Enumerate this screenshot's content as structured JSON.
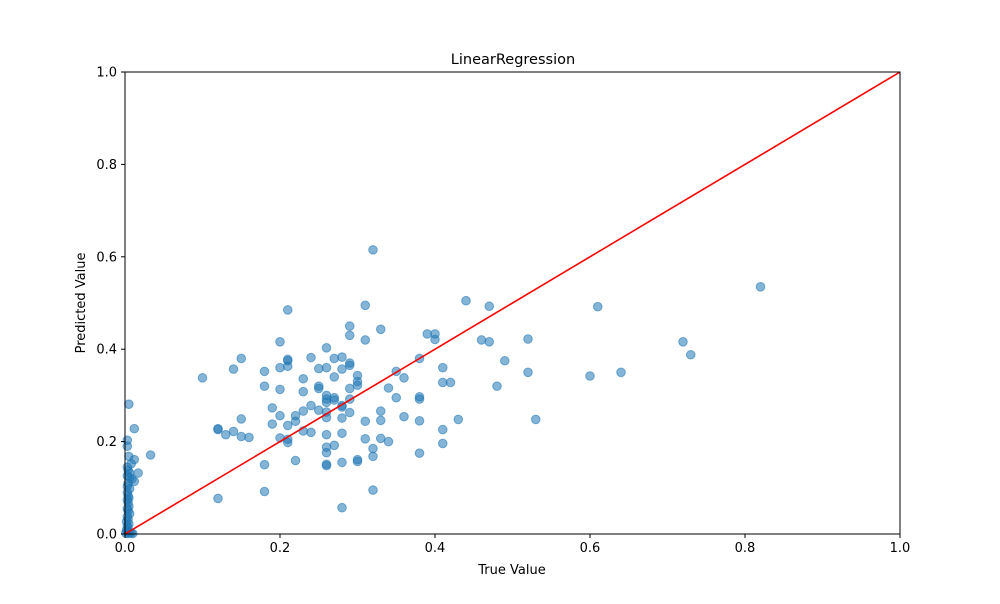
{
  "chart_data": {
    "type": "scatter",
    "title": "LinearRegression",
    "xlabel": "True Value",
    "ylabel": "Predicted Value",
    "xlim": [
      0,
      1
    ],
    "ylim": [
      0,
      1
    ],
    "xticks": [
      "0.0",
      "0.2",
      "0.4",
      "0.6",
      "0.8",
      "1.0"
    ],
    "yticks": [
      "0.0",
      "0.2",
      "0.4",
      "0.6",
      "0.8",
      "1.0"
    ],
    "grid": false,
    "point_color": "#1f77b4",
    "point_alpha": 0.55,
    "reference_line": {
      "x": [
        0,
        1
      ],
      "y": [
        0,
        1
      ],
      "color": "#ff0000"
    },
    "points": [
      [
        0.32,
        0.615
      ],
      [
        0.82,
        0.535
      ],
      [
        0.44,
        0.505
      ],
      [
        0.31,
        0.495
      ],
      [
        0.47,
        0.493
      ],
      [
        0.61,
        0.492
      ],
      [
        0.21,
        0.485
      ],
      [
        0.29,
        0.45
      ],
      [
        0.33,
        0.443
      ],
      [
        0.39,
        0.433
      ],
      [
        0.4,
        0.433
      ],
      [
        0.29,
        0.43
      ],
      [
        0.31,
        0.42
      ],
      [
        0.4,
        0.421
      ],
      [
        0.46,
        0.42
      ],
      [
        0.47,
        0.416
      ],
      [
        0.52,
        0.422
      ],
      [
        0.72,
        0.416
      ],
      [
        0.2,
        0.416
      ],
      [
        0.26,
        0.403
      ],
      [
        0.73,
        0.388
      ],
      [
        0.15,
        0.38
      ],
      [
        0.21,
        0.378
      ],
      [
        0.21,
        0.375
      ],
      [
        0.24,
        0.382
      ],
      [
        0.27,
        0.38
      ],
      [
        0.28,
        0.383
      ],
      [
        0.38,
        0.38
      ],
      [
        0.49,
        0.375
      ],
      [
        0.29,
        0.37
      ],
      [
        0.29,
        0.365
      ],
      [
        0.2,
        0.36
      ],
      [
        0.21,
        0.363
      ],
      [
        0.26,
        0.36
      ],
      [
        0.25,
        0.358
      ],
      [
        0.28,
        0.357
      ],
      [
        0.41,
        0.36
      ],
      [
        0.14,
        0.357
      ],
      [
        0.35,
        0.352
      ],
      [
        0.52,
        0.35
      ],
      [
        0.64,
        0.35
      ],
      [
        0.18,
        0.352
      ],
      [
        0.3,
        0.343
      ],
      [
        0.27,
        0.34
      ],
      [
        0.36,
        0.338
      ],
      [
        0.23,
        0.336
      ],
      [
        0.1,
        0.338
      ],
      [
        0.6,
        0.342
      ],
      [
        0.3,
        0.33
      ],
      [
        0.41,
        0.328
      ],
      [
        0.42,
        0.328
      ],
      [
        0.3,
        0.322
      ],
      [
        0.48,
        0.32
      ],
      [
        0.25,
        0.32
      ],
      [
        0.18,
        0.32
      ],
      [
        0.25,
        0.315
      ],
      [
        0.29,
        0.315
      ],
      [
        0.34,
        0.316
      ],
      [
        0.2,
        0.313
      ],
      [
        0.23,
        0.308
      ],
      [
        0.26,
        0.3
      ],
      [
        0.27,
        0.295
      ],
      [
        0.27,
        0.29
      ],
      [
        0.29,
        0.292
      ],
      [
        0.26,
        0.292
      ],
      [
        0.35,
        0.295
      ],
      [
        0.38,
        0.297
      ],
      [
        0.38,
        0.292
      ],
      [
        0.26,
        0.285
      ],
      [
        0.24,
        0.278
      ],
      [
        0.28,
        0.278
      ],
      [
        0.28,
        0.275
      ],
      [
        0.19,
        0.273
      ],
      [
        0.25,
        0.268
      ],
      [
        0.23,
        0.266
      ],
      [
        0.33,
        0.266
      ],
      [
        0.26,
        0.264
      ],
      [
        0.29,
        0.263
      ],
      [
        0.2,
        0.256
      ],
      [
        0.22,
        0.256
      ],
      [
        0.26,
        0.252
      ],
      [
        0.28,
        0.251
      ],
      [
        0.36,
        0.254
      ],
      [
        0.15,
        0.249
      ],
      [
        0.22,
        0.244
      ],
      [
        0.31,
        0.244
      ],
      [
        0.33,
        0.246
      ],
      [
        0.38,
        0.245
      ],
      [
        0.43,
        0.248
      ],
      [
        0.53,
        0.248
      ],
      [
        0.19,
        0.238
      ],
      [
        0.21,
        0.235
      ],
      [
        0.12,
        0.228
      ],
      [
        0.12,
        0.226
      ],
      [
        0.14,
        0.222
      ],
      [
        0.23,
        0.223
      ],
      [
        0.41,
        0.226
      ],
      [
        0.13,
        0.215
      ],
      [
        0.24,
        0.22
      ],
      [
        0.28,
        0.218
      ],
      [
        0.26,
        0.215
      ],
      [
        0.15,
        0.211
      ],
      [
        0.16,
        0.209
      ],
      [
        0.2,
        0.208
      ],
      [
        0.21,
        0.205
      ],
      [
        0.31,
        0.206
      ],
      [
        0.33,
        0.207
      ],
      [
        0.34,
        0.2
      ],
      [
        0.21,
        0.198
      ],
      [
        0.41,
        0.196
      ],
      [
        0.27,
        0.192
      ],
      [
        0.26,
        0.188
      ],
      [
        0.32,
        0.185
      ],
      [
        0.26,
        0.176
      ],
      [
        0.38,
        0.175
      ],
      [
        0.32,
        0.168
      ],
      [
        0.22,
        0.159
      ],
      [
        0.3,
        0.161
      ],
      [
        0.3,
        0.157
      ],
      [
        0.28,
        0.155
      ],
      [
        0.26,
        0.151
      ],
      [
        0.26,
        0.148
      ],
      [
        0.18,
        0.15
      ],
      [
        0.32,
        0.095
      ],
      [
        0.18,
        0.092
      ],
      [
        0.12,
        0.077
      ],
      [
        0.28,
        0.057
      ],
      [
        0.033,
        0.171
      ],
      [
        0.012,
        0.228
      ],
      [
        0.005,
        0.281
      ],
      [
        0.003,
        0.203
      ],
      [
        0.003,
        0.19
      ],
      [
        0.005,
        0.168
      ],
      [
        0.012,
        0.161
      ],
      [
        0.008,
        0.152
      ],
      [
        0.003,
        0.145
      ],
      [
        0.004,
        0.138
      ],
      [
        0.006,
        0.132
      ],
      [
        0.017,
        0.132
      ],
      [
        0.003,
        0.126
      ],
      [
        0.006,
        0.122
      ],
      [
        0.009,
        0.119
      ],
      [
        0.012,
        0.114
      ],
      [
        0.004,
        0.11
      ],
      [
        0.003,
        0.103
      ],
      [
        0.006,
        0.098
      ],
      [
        0.003,
        0.09
      ],
      [
        0.004,
        0.083
      ],
      [
        0.005,
        0.078
      ],
      [
        0.003,
        0.074
      ],
      [
        0.004,
        0.068
      ],
      [
        0.005,
        0.06
      ],
      [
        0.003,
        0.055
      ],
      [
        0.004,
        0.05
      ],
      [
        0.006,
        0.044
      ],
      [
        0.003,
        0.038
      ],
      [
        0.004,
        0.032
      ],
      [
        0.002,
        0.027
      ],
      [
        0.005,
        0.022
      ],
      [
        0.003,
        0.018
      ],
      [
        0.004,
        0.013
      ],
      [
        0.002,
        0.009
      ],
      [
        0.003,
        0.005
      ],
      [
        0.006,
        0.003
      ],
      [
        0.008,
        0.002
      ],
      [
        0.01,
        0.001
      ],
      [
        0.001,
        0.002
      ],
      [
        0.004,
        0.001
      ]
    ]
  }
}
